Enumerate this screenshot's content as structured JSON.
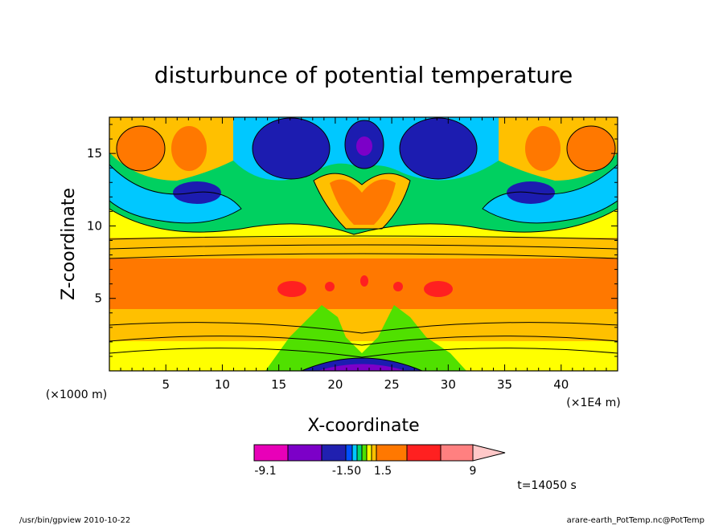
{
  "chart_data": {
    "type": "heatmap",
    "title": "disturbunce of potential temperature",
    "xlabel": "X-coordinate",
    "ylabel": "Z-coordinate",
    "x_unit": "(×1E4 m)",
    "y_unit": "(×1000 m)",
    "xlim": [
      0,
      45
    ],
    "ylim": [
      0,
      17.5
    ],
    "x_ticks": [
      5,
      10,
      15,
      20,
      25,
      30,
      35,
      40
    ],
    "y_ticks": [
      5,
      10,
      15
    ],
    "colorbar": {
      "tick_labels": [
        "-9.1",
        "-1.50",
        "1.5",
        "9"
      ],
      "tick_values": [
        -9.1,
        -1.5,
        1.5,
        9
      ],
      "colors": [
        "#e800b8",
        "#7c00c8",
        "#2020b0",
        "#0050ff",
        "#00c8ff",
        "#00d870",
        "#50e000",
        "#ffff00",
        "#ffc000",
        "#ff7800",
        "#ff2020",
        "#ff8080",
        "#ffc8c8"
      ]
    },
    "levels_colors": {
      "deep_neg": "#7c00c8",
      "neg2": "#1c1cb0",
      "neg1": "#00c8ff",
      "near_neg": "#00d060",
      "near_pos": "#ffff00",
      "pos1": "#ffc000",
      "pos2": "#ff7800",
      "pos3": "#ff2020"
    },
    "time_label": "t=14050 s"
  },
  "footer": {
    "left": "/usr/bin/gpview  2010-10-22",
    "right": "arare-earth_PotTemp.nc@PotTemp"
  }
}
